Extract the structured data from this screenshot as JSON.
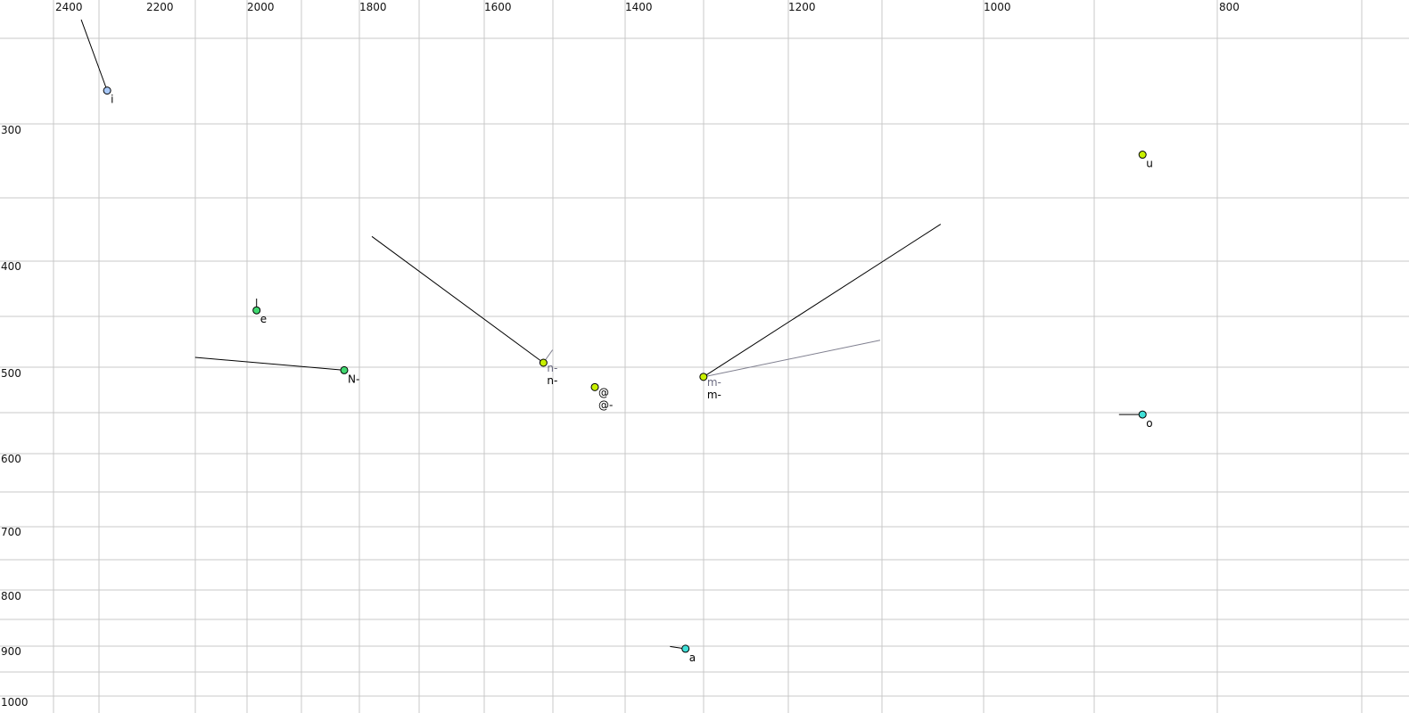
{
  "chart_data": {
    "type": "scatter",
    "title": "",
    "xlabel": "",
    "ylabel": "",
    "x_axis": {
      "reversed": true,
      "position": "top",
      "ticks": [
        2400,
        2200,
        2000,
        1800,
        1600,
        1400,
        1200,
        1000,
        800
      ]
    },
    "y_axis": {
      "reversed": true,
      "position": "left",
      "ticks": [
        300,
        400,
        500,
        600,
        700,
        800,
        900,
        1000
      ]
    },
    "grid": true,
    "points": [
      {
        "label": "i",
        "f2": 2286,
        "f1": 271,
        "color": "#a8c8f8",
        "trajectory": [
          [
            2343,
            219
          ]
        ]
      },
      {
        "label": "e",
        "f2": 1983,
        "f1": 441,
        "color": "#40d870",
        "trajectory": [
          [
            1983,
            430
          ]
        ]
      },
      {
        "label": "N-",
        "f2": 1827,
        "f1": 497,
        "color": "#40d870",
        "trajectory": [
          [
            2103,
            485
          ]
        ]
      },
      {
        "label": "n-",
        "secondary_label": "n-",
        "f2": 1516,
        "f1": 490,
        "color": "#c8f000",
        "trajectory": [
          [
            1780,
            378
          ]
        ],
        "secondary_trajectory": [
          [
            1503,
            478
          ]
        ]
      },
      {
        "label": "@-",
        "secondary_label": "@",
        "f2": 1443,
        "f1": 516,
        "color": "#c8f000",
        "trajectory": []
      },
      {
        "label": "m-",
        "secondary_label": "m-",
        "f2": 1304,
        "f1": 504,
        "color": "#c8f000",
        "trajectory": [
          [
            1044,
            369
          ]
        ],
        "secondary_trajectory": [
          [
            1106,
            469
          ]
        ]
      },
      {
        "label": "u",
        "f2": 865,
        "f1": 318,
        "color": "#c8f000",
        "trajectory": []
      },
      {
        "label": "o",
        "f2": 865,
        "f1": 548,
        "color": "#40e0d8",
        "trajectory": [
          [
            885,
            548
          ]
        ]
      },
      {
        "label": "a",
        "f2": 1326,
        "f1": 895,
        "color": "#40e0d8",
        "trajectory": [
          [
            1345,
            891
          ]
        ]
      }
    ]
  }
}
